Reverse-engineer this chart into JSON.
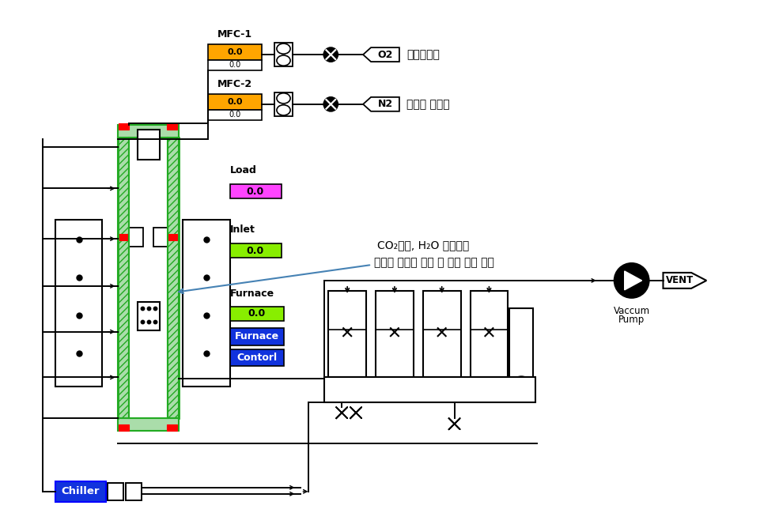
{
  "bg": "#ffffff",
  "mfc1": "MFC-1",
  "mfc2": "MFC-2",
  "val00": "0.0",
  "val00b": "0.0",
  "load_lbl": "Load",
  "inlet_lbl": "Inlet",
  "furnace_lbl": "Furnace",
  "furnace_btn": "Furnace",
  "contorl_btn": "Contorl",
  "o2": "O2",
  "n2": "N2",
  "atm1": "연소분위기",
  "atm2": "열분해 분위기",
  "annot": "폐기물 시료의 온도 및 무게 변화 측정",
  "co2_lbl": "CO₂흥수, H₂O 응축회수",
  "pump1": "Vaccum",
  "pump2": "Pump",
  "vent": "VENT",
  "chiller": "Chiller",
  "orange": "#FFA500",
  "magenta": "#FF44FF",
  "lime": "#88EE00",
  "blue_btn": "#1133DD",
  "green_w": "#22AA22",
  "green_f": "#AADDAA"
}
